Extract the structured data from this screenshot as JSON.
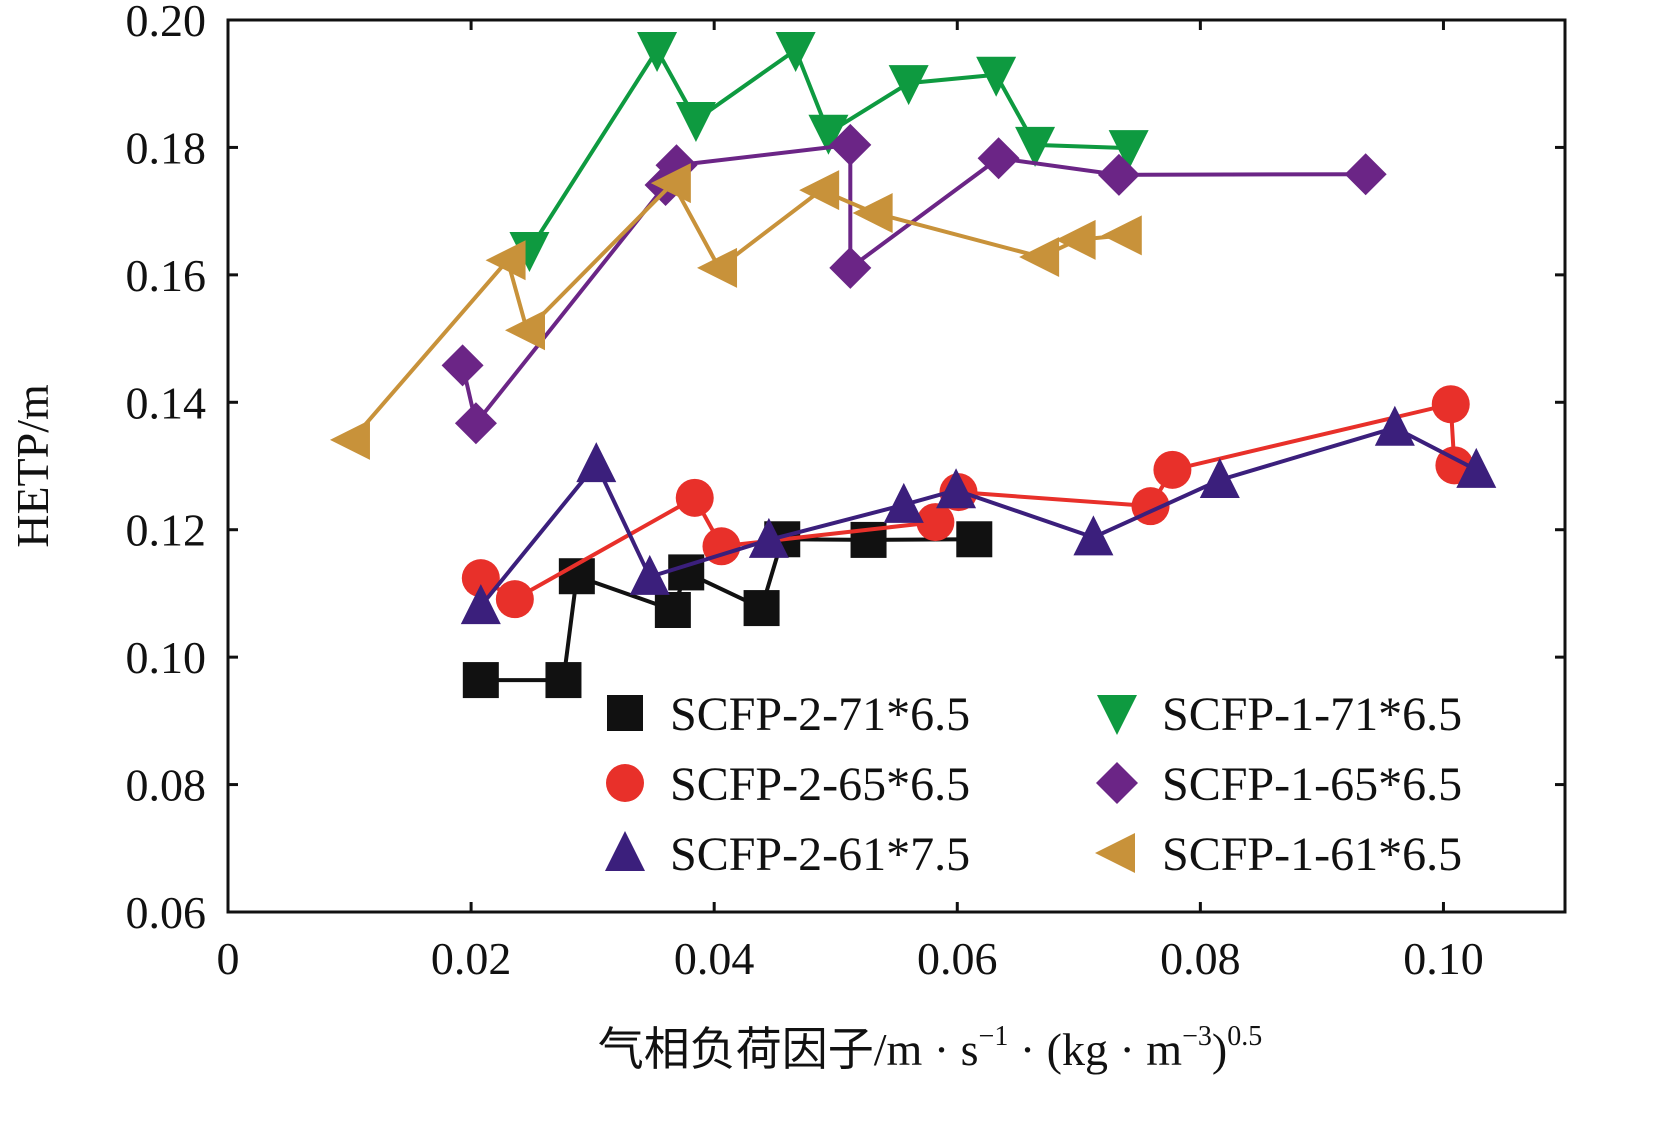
{
  "chart_data": {
    "type": "line",
    "title": "",
    "ylabel": "HETP/m",
    "xlabel_parts": [
      {
        "t": "气相负荷因子/m · s"
      },
      {
        "t": "−1",
        "sup": true
      },
      {
        "t": " · (kg · m"
      },
      {
        "t": "−3",
        "sup": true
      },
      {
        "t": ")"
      },
      {
        "t": "0.5",
        "sup": true
      }
    ],
    "xlim": [
      0,
      0.11
    ],
    "ylim": [
      0.06,
      0.2
    ],
    "xticks": [
      0,
      0.02,
      0.04,
      0.06,
      0.08,
      0.1
    ],
    "xtick_labels": [
      "0",
      "0.02",
      "0.04",
      "0.06",
      "0.08",
      "0.10"
    ],
    "yticks": [
      0.06,
      0.08,
      0.1,
      0.12,
      0.14,
      0.16,
      0.18,
      0.2
    ],
    "ytick_labels": [
      "0.06",
      "0.08",
      "0.10",
      "0.12",
      "0.14",
      "0.16",
      "0.18",
      "0.20"
    ],
    "grid": false,
    "legend_placement": "bottom-right",
    "series": [
      {
        "name": "SCFP-2-71*6.5",
        "color": "#111111",
        "marker": "square",
        "x": [
          0.0208,
          0.0276,
          0.0287,
          0.0366,
          0.0377,
          0.0439,
          0.0456,
          0.0527,
          0.0614
        ],
        "y": [
          0.0964,
          0.0964,
          0.1127,
          0.1074,
          0.1133,
          0.1077,
          0.1185,
          0.1184,
          0.1185
        ]
      },
      {
        "name": "SCFP-2-65*6.5",
        "color": "#e8302a",
        "marker": "circle",
        "x": [
          0.0208,
          0.0236,
          0.0384,
          0.0406,
          0.0582,
          0.0601,
          0.0759,
          0.0777,
          0.1006,
          0.1009
        ],
        "y": [
          0.1124,
          0.1091,
          0.125,
          0.1174,
          0.1212,
          0.1259,
          0.1237,
          0.1294,
          0.1397,
          0.1301
        ]
      },
      {
        "name": "SCFP-2-61*7.5",
        "color": "#3b1f7c",
        "marker": "triangle-up",
        "x": [
          0.0208,
          0.0303,
          0.0347,
          0.0445,
          0.0556,
          0.0599,
          0.0712,
          0.0816,
          0.096,
          0.1027
        ],
        "y": [
          0.108,
          0.1303,
          0.1126,
          0.1184,
          0.1239,
          0.1262,
          0.1188,
          0.1278,
          0.136,
          0.1294
        ]
      },
      {
        "name": "SCFP-1-71*6.5",
        "color": "#0e9a40",
        "marker": "triangle-down",
        "x": [
          0.0248,
          0.0353,
          0.0385,
          0.0467,
          0.0494,
          0.056,
          0.0632,
          0.0664,
          0.0741
        ],
        "y": [
          0.1639,
          0.1953,
          0.1843,
          0.1953,
          0.1823,
          0.1901,
          0.1914,
          0.1804,
          0.1799
        ]
      },
      {
        "name": "SCFP-1-65*6.5",
        "color": "#6b2586",
        "marker": "diamond",
        "x": [
          0.0193,
          0.0204,
          0.036,
          0.0369,
          0.0512,
          0.0512,
          0.0634,
          0.0733,
          0.0936
        ],
        "y": [
          0.1458,
          0.1367,
          0.1741,
          0.1772,
          0.1804,
          0.1611,
          0.1783,
          0.1757,
          0.1758
        ]
      },
      {
        "name": "SCFP-1-61*6.5",
        "color": "#c8923a",
        "marker": "triangle-left",
        "x": [
          0.0102,
          0.023,
          0.0246,
          0.0366,
          0.0404,
          0.0488,
          0.0532,
          0.0669,
          0.0699,
          0.0737
        ],
        "y": [
          0.1341,
          0.1623,
          0.1513,
          0.1744,
          0.1611,
          0.1733,
          0.1697,
          0.1628,
          0.1655,
          0.1662
        ]
      }
    ]
  }
}
